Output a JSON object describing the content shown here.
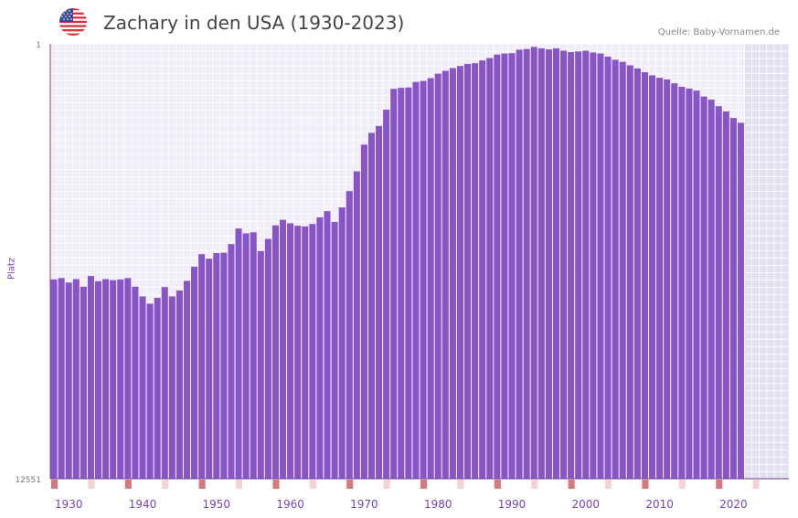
{
  "header": {
    "title": "Zachary in den USA (1930-2023)",
    "source": "Quelle: Baby-Vornamen.de",
    "flag_icon": "usa-flag-icon"
  },
  "colors": {
    "bar": "#8855c8",
    "plot_bg": "#f2eef9",
    "future_bg": "#e4dfef",
    "grid": "#ffffff",
    "axis": "#8a4a6a",
    "tick_text": "#7744bb",
    "decade_marker": "#d9777a",
    "half_marker": "#f3d3d5"
  },
  "chart_data": {
    "type": "bar",
    "title": "Zachary in den USA (1930-2023)",
    "ylabel": "Platz",
    "xlabel": "",
    "y_reversed": true,
    "ylim": [
      1,
      12551
    ],
    "y_tick_labels": [
      "1",
      "12551"
    ],
    "xlim": [
      1928,
      2028
    ],
    "x_tick_labels": [
      "1930",
      "1940",
      "1950",
      "1960",
      "1970",
      "1980",
      "1990",
      "2000",
      "2010",
      "2020"
    ],
    "future_shading_from": 2022,
    "series": [
      {
        "name": "Zachary",
        "x": [
          1928,
          1929,
          1930,
          1931,
          1932,
          1933,
          1934,
          1935,
          1936,
          1937,
          1938,
          1939,
          1940,
          1941,
          1942,
          1943,
          1944,
          1945,
          1946,
          1947,
          1948,
          1949,
          1950,
          1951,
          1952,
          1953,
          1954,
          1955,
          1956,
          1957,
          1958,
          1959,
          1960,
          1961,
          1962,
          1963,
          1964,
          1965,
          1966,
          1967,
          1968,
          1969,
          1970,
          1971,
          1972,
          1973,
          1974,
          1975,
          1976,
          1977,
          1978,
          1979,
          1980,
          1981,
          1982,
          1983,
          1984,
          1985,
          1986,
          1987,
          1988,
          1989,
          1990,
          1991,
          1992,
          1993,
          1994,
          1995,
          1996,
          1997,
          1998,
          1999,
          2000,
          2001,
          2002,
          2003,
          2004,
          2005,
          2006,
          2007,
          2008,
          2009,
          2010,
          2011,
          2012,
          2013,
          2014,
          2015,
          2016,
          2017,
          2018,
          2019,
          2020,
          2021
        ],
        "values": [
          6800,
          6760,
          6890,
          6790,
          7010,
          6700,
          6850,
          6790,
          6820,
          6800,
          6760,
          7010,
          7290,
          7500,
          7330,
          7020,
          7290,
          7120,
          6840,
          6430,
          6070,
          6200,
          6040,
          6030,
          5780,
          5330,
          5470,
          5440,
          5980,
          5630,
          5240,
          5080,
          5180,
          5250,
          5270,
          5200,
          5010,
          4830,
          5140,
          4720,
          4250,
          3680,
          2910,
          2570,
          2370,
          1900,
          1300,
          1270,
          1260,
          1100,
          1070,
          990,
          860,
          780,
          700,
          640,
          580,
          560,
          480,
          410,
          310,
          280,
          270,
          170,
          150,
          90,
          130,
          160,
          130,
          200,
          240,
          220,
          200,
          250,
          280,
          370,
          460,
          520,
          620,
          710,
          820,
          910,
          980,
          1030,
          1140,
          1240,
          1290,
          1350,
          1520,
          1610,
          1800,
          1950,
          2140,
          2280
        ]
      }
    ]
  }
}
